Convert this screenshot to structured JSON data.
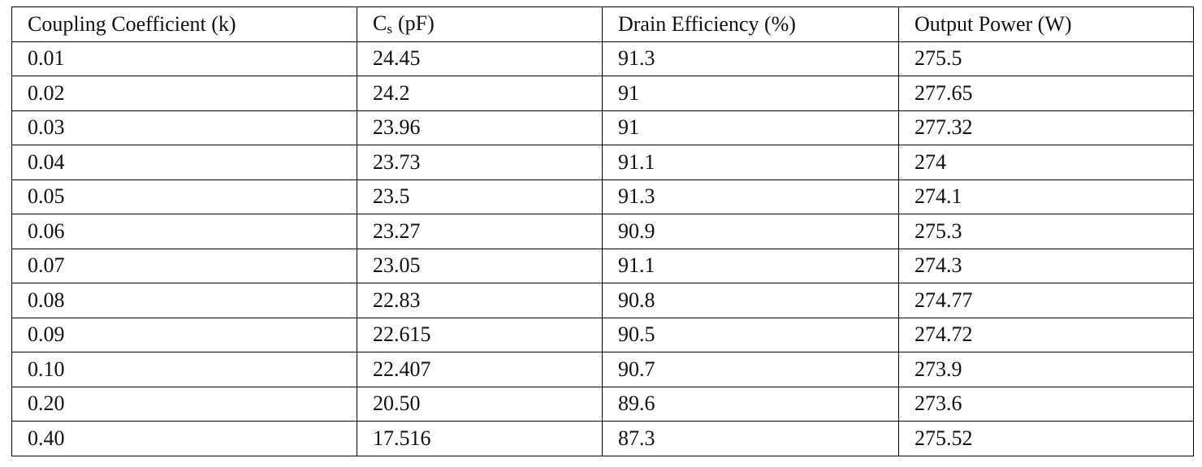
{
  "table": {
    "header": [
      "Coupling Coefficient (k)",
      {
        "main": "C",
        "sub": "s",
        "rest": "(pF)"
      },
      "Drain Efficiency (%)",
      "Output Power (W)"
    ],
    "rows": [
      [
        "0.01",
        "24.45",
        "91.3",
        "275.5"
      ],
      [
        "0.02",
        "24.2",
        "91",
        "277.65"
      ],
      [
        "0.03",
        "23.96",
        "91",
        "277.32"
      ],
      [
        "0.04",
        "23.73",
        "91.1",
        "274"
      ],
      [
        "0.05",
        "23.5",
        "91.3",
        "274.1"
      ],
      [
        "0.06",
        "23.27",
        "90.9",
        "275.3"
      ],
      [
        "0.07",
        "23.05",
        "91.1",
        "274.3"
      ],
      [
        "0.08",
        "22.83",
        "90.8",
        "274.77"
      ],
      [
        "0.09",
        "22.615",
        "90.5",
        "274.72"
      ],
      [
        "0.10",
        "22.407",
        "90.7",
        "273.9"
      ],
      [
        "0.20",
        "20.50",
        "89.6",
        "273.6"
      ],
      [
        "0.40",
        "17.516",
        "87.3",
        "275.52"
      ]
    ]
  }
}
